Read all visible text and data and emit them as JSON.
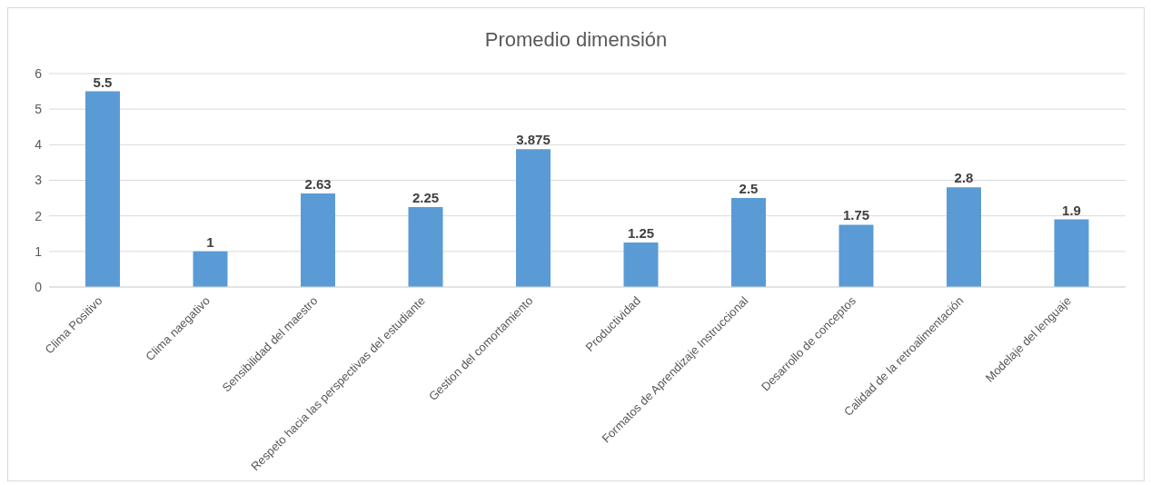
{
  "chart_data": {
    "type": "bar",
    "title": "Promedio dimensión",
    "categories": [
      "Clima Positivo",
      "Clima naegativo",
      "Sensibilidad del maestro",
      "Respeto hacia las perspectivas del estudiante",
      "Gestion del comortamiento",
      "Productividad",
      "Formatos de Aprendizaje Instruccional",
      "Desarrollo de conceptos",
      "Calidad de la retroalimentación",
      "Modelaje del lenguaje"
    ],
    "values": [
      5.5,
      1,
      2.63,
      2.25,
      3.875,
      1.25,
      2.5,
      1.75,
      2.8,
      1.9
    ],
    "color": "#5b9bd5",
    "ylim": [
      0,
      6
    ],
    "yticks": [
      0,
      1,
      2,
      3,
      4,
      5,
      6
    ],
    "grid": "y",
    "data_labels": true,
    "legend": false
  }
}
